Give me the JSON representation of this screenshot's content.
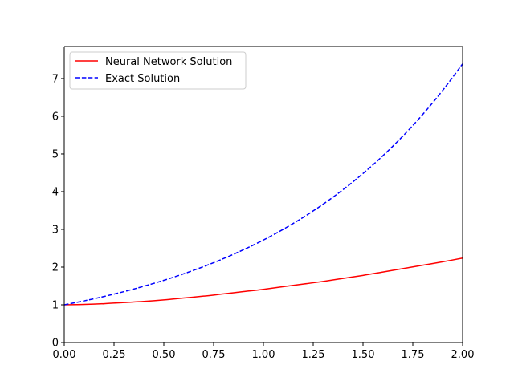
{
  "chart_data": {
    "type": "line",
    "title": "",
    "xlabel": "",
    "ylabel": "",
    "xlim": [
      0.0,
      2.0
    ],
    "ylim": [
      0,
      7.85
    ],
    "grid": false,
    "legend_position": "upper-left",
    "x_ticks": [
      "0.00",
      "0.25",
      "0.50",
      "0.75",
      "1.00",
      "1.25",
      "1.50",
      "1.75",
      "2.00"
    ],
    "y_ticks": [
      "0",
      "1",
      "2",
      "3",
      "4",
      "5",
      "6",
      "7"
    ],
    "series": [
      {
        "name": "Neural Network Solution",
        "color": "#ff0000",
        "style": "solid",
        "x": [
          0.0,
          0.1,
          0.2,
          0.3,
          0.4,
          0.5,
          0.6,
          0.7,
          0.8,
          0.9,
          1.0,
          1.1,
          1.2,
          1.3,
          1.4,
          1.5,
          1.6,
          1.7,
          1.8,
          1.9,
          2.0
        ],
        "y": [
          1.0,
          1.01,
          1.03,
          1.06,
          1.09,
          1.13,
          1.18,
          1.23,
          1.29,
          1.35,
          1.41,
          1.48,
          1.55,
          1.62,
          1.7,
          1.78,
          1.87,
          1.96,
          2.05,
          2.14,
          2.24
        ]
      },
      {
        "name": "Exact Solution",
        "color": "#0000ff",
        "style": "dashed",
        "x": [
          0.0,
          0.1,
          0.2,
          0.3,
          0.4,
          0.5,
          0.6,
          0.7,
          0.8,
          0.9,
          1.0,
          1.1,
          1.2,
          1.3,
          1.4,
          1.5,
          1.6,
          1.7,
          1.8,
          1.9,
          2.0
        ],
        "y": [
          1.0,
          1.105,
          1.221,
          1.35,
          1.492,
          1.649,
          1.822,
          2.014,
          2.226,
          2.46,
          2.718,
          3.004,
          3.32,
          3.669,
          4.055,
          4.482,
          4.953,
          5.474,
          6.05,
          6.686,
          7.389
        ]
      }
    ]
  }
}
